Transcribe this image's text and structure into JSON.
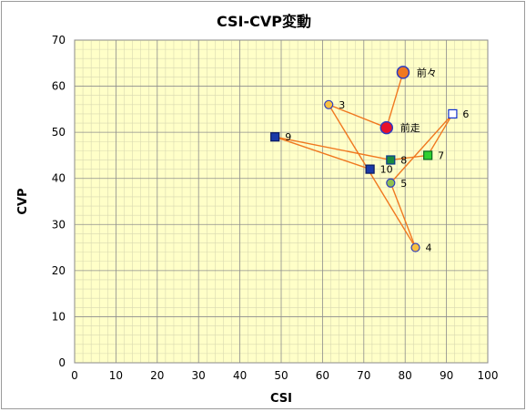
{
  "chart_data": {
    "type": "scatter",
    "title": "CSI-CVP変動",
    "xlabel": "CSI",
    "ylabel": "CVP",
    "xlim": [
      0,
      100
    ],
    "ylim": [
      0,
      70
    ],
    "xticks": [
      "0",
      "10",
      "20",
      "30",
      "40",
      "50",
      "60",
      "70",
      "80",
      "90",
      "100"
    ],
    "yticks": [
      "0",
      "10",
      "20",
      "30",
      "40",
      "50",
      "60",
      "70"
    ],
    "grid": true,
    "minor_grid": true,
    "plot_background": "#ffffc8",
    "line_color": "#f07820",
    "path_order": [
      "前々",
      "前走",
      "3",
      "4",
      "5",
      "6",
      "7",
      "8",
      "9",
      "10"
    ],
    "points": [
      {
        "label": "前々",
        "x": 79.5,
        "y": 63,
        "marker": "circle-large",
        "fill": "#f07820",
        "stroke": "#2c3cc0"
      },
      {
        "label": "前走",
        "x": 75.5,
        "y": 51,
        "marker": "circle-large",
        "fill": "#e8102a",
        "stroke": "#2c3cc0"
      },
      {
        "label": "3",
        "x": 61.5,
        "y": 56,
        "marker": "circle",
        "fill": "#f8c040",
        "stroke": "#2c3cc0"
      },
      {
        "label": "4",
        "x": 82.5,
        "y": 25,
        "marker": "circle",
        "fill": "#f8c040",
        "stroke": "#2c3cc0"
      },
      {
        "label": "5",
        "x": 76.5,
        "y": 39,
        "marker": "circle",
        "fill": "#90c050",
        "stroke": "#2c3cc0"
      },
      {
        "label": "6",
        "x": 91.5,
        "y": 54,
        "marker": "square",
        "fill": "#ffffff",
        "stroke": "#1030d0"
      },
      {
        "label": "7",
        "x": 85.5,
        "y": 45,
        "marker": "square",
        "fill": "#30d030",
        "stroke": "#0a6a20"
      },
      {
        "label": "8",
        "x": 76.5,
        "y": 44,
        "marker": "square",
        "fill": "#1a8a40",
        "stroke": "#0a3a90"
      },
      {
        "label": "9",
        "x": 48.5,
        "y": 49,
        "marker": "square",
        "fill": "#1a3aa8",
        "stroke": "#0a1a60"
      },
      {
        "label": "10",
        "x": 71.5,
        "y": 42,
        "marker": "square",
        "fill": "#1a3aa8",
        "stroke": "#0a1a60"
      }
    ]
  }
}
